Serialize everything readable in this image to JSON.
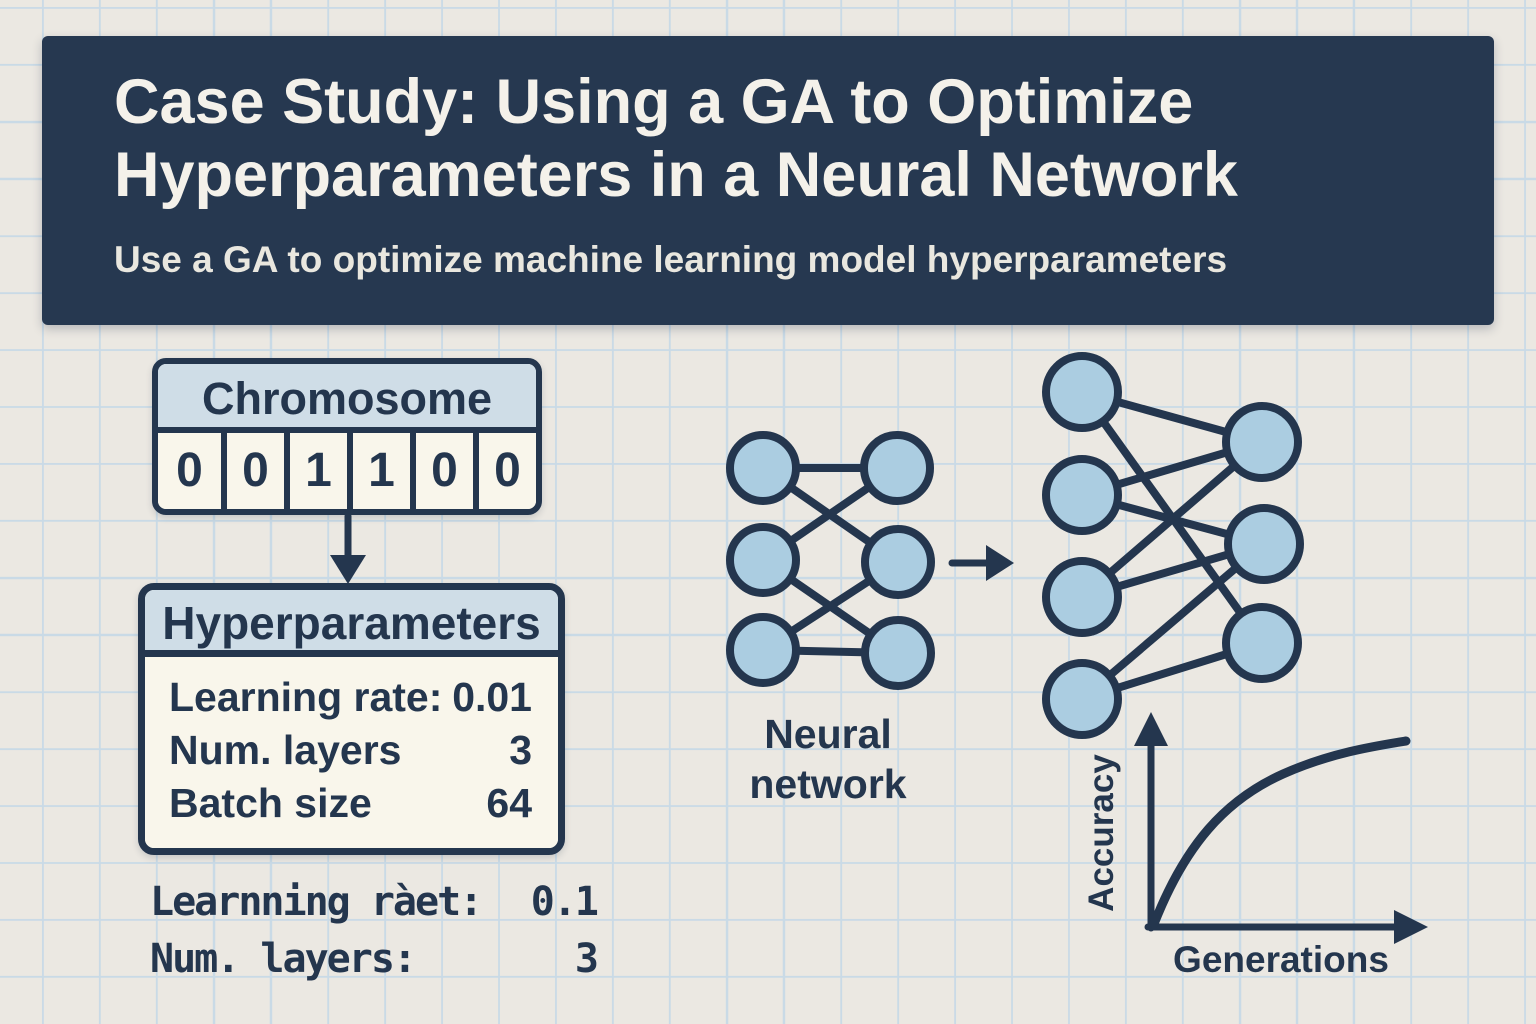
{
  "banner": {
    "title_line1": "Case Study: Using a GA to Optimize",
    "title_line2": "Hyperparameters in a Neural Network",
    "subtitle": "Use a GA to optimize machine learning model hyperparameters"
  },
  "chromosome": {
    "title": "Chromosome",
    "genes": [
      "0",
      "0",
      "1",
      "1",
      "0",
      "0"
    ]
  },
  "hyperparameters": {
    "title": "Hyperparameters",
    "rows": [
      {
        "label": "Learning rate:",
        "value": "0.01"
      },
      {
        "label": "Num. layers",
        "value": "3"
      },
      {
        "label": "Batch size",
        "value": "64"
      }
    ]
  },
  "handwritten_notes": {
    "rows": [
      {
        "label": "Learnning ràet:",
        "value": "0.1"
      },
      {
        "label": "Num. layers:",
        "value": "3"
      }
    ]
  },
  "network_diagram": {
    "label_line1": "Neural",
    "label_line2": "network",
    "network_before_layers": [
      3,
      3
    ],
    "network_after_layers": [
      4,
      3
    ]
  },
  "chart": {
    "type": "line",
    "ylabel": "Accuracy",
    "xlabel": "Generations",
    "trend": "accuracy rises steeply then levels off as generations increase"
  },
  "colors": {
    "navy": "#263850",
    "ink": "#24364e",
    "node_blue": "#abcde1",
    "box_header": "#cfdde7",
    "cream": "#f9f6eb",
    "paper": "#ebe8e2",
    "grid": "#c9dae6",
    "banner_text": "#f4f1ea"
  }
}
